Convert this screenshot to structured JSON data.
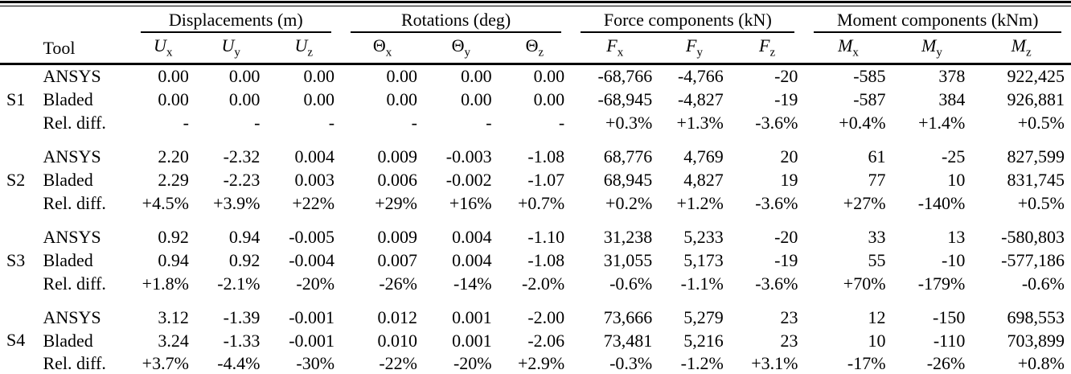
{
  "table": {
    "tool_header": "Tool",
    "groups": [
      {
        "label": "Displacements (m)"
      },
      {
        "label": "Rotations (deg)"
      },
      {
        "label": "Force components (kN)"
      },
      {
        "label": "Moment components (kNm)"
      }
    ],
    "col_headers": [
      {
        "base": "U",
        "sub": "x",
        "italic": true
      },
      {
        "base": "U",
        "sub": "y",
        "italic": true
      },
      {
        "base": "U",
        "sub": "z",
        "italic": true
      },
      {
        "base": "Θ",
        "sub": "x",
        "italic": false
      },
      {
        "base": "Θ",
        "sub": "y",
        "italic": false
      },
      {
        "base": "Θ",
        "sub": "z",
        "italic": false
      },
      {
        "base": "F",
        "sub": "x",
        "italic": true
      },
      {
        "base": "F",
        "sub": "y",
        "italic": true
      },
      {
        "base": "F",
        "sub": "z",
        "italic": true
      },
      {
        "base": "M",
        "sub": "x",
        "italic": true
      },
      {
        "base": "M",
        "sub": "y",
        "italic": true
      },
      {
        "base": "M",
        "sub": "z",
        "italic": true
      }
    ],
    "sections": [
      {
        "label": "S1",
        "rows": [
          {
            "tool": "ANSYS",
            "values": [
              "0.00",
              "0.00",
              "0.00",
              "0.00",
              "0.00",
              "0.00",
              "-68,766",
              "-4,766",
              "-20",
              "-585",
              "378",
              "922,425"
            ]
          },
          {
            "tool": "Bladed",
            "values": [
              "0.00",
              "0.00",
              "0.00",
              "0.00",
              "0.00",
              "0.00",
              "-68,945",
              "-4,827",
              "-19",
              "-587",
              "384",
              "926,881"
            ]
          },
          {
            "tool": "Rel. diff.",
            "values": [
              "-",
              "-",
              "-",
              "-",
              "-",
              "-",
              "+0.3%",
              "+1.3%",
              "-3.6%",
              "+0.4%",
              "+1.4%",
              "+0.5%"
            ]
          }
        ]
      },
      {
        "label": "S2",
        "rows": [
          {
            "tool": "ANSYS",
            "values": [
              "2.20",
              "-2.32",
              "0.004",
              "0.009",
              "-0.003",
              "-1.08",
              "68,776",
              "4,769",
              "20",
              "61",
              "-25",
              "827,599"
            ]
          },
          {
            "tool": "Bladed",
            "values": [
              "2.29",
              "-2.23",
              "0.003",
              "0.006",
              "-0.002",
              "-1.07",
              "68,945",
              "4,827",
              "19",
              "77",
              "10",
              "831,745"
            ]
          },
          {
            "tool": "Rel. diff.",
            "values": [
              "+4.5%",
              "+3.9%",
              "+22%",
              "+29%",
              "+16%",
              "+0.7%",
              "+0.2%",
              "+1.2%",
              "-3.6%",
              "+27%",
              "-140%",
              "+0.5%"
            ]
          }
        ]
      },
      {
        "label": "S3",
        "rows": [
          {
            "tool": "ANSYS",
            "values": [
              "0.92",
              "0.94",
              "-0.005",
              "0.009",
              "0.004",
              "-1.10",
              "31,238",
              "5,233",
              "-20",
              "33",
              "13",
              "-580,803"
            ]
          },
          {
            "tool": "Bladed",
            "values": [
              "0.94",
              "0.92",
              "-0.004",
              "0.007",
              "0.004",
              "-1.08",
              "31,055",
              "5,173",
              "-19",
              "55",
              "-10",
              "-577,186"
            ]
          },
          {
            "tool": "Rel. diff.",
            "values": [
              "+1.8%",
              "-2.1%",
              "-20%",
              "-26%",
              "-14%",
              "-2.0%",
              "-0.6%",
              "-1.1%",
              "-3.6%",
              "+70%",
              "-179%",
              "-0.6%"
            ]
          }
        ]
      },
      {
        "label": "S4",
        "rows": [
          {
            "tool": "ANSYS",
            "values": [
              "3.12",
              "-1.39",
              "-0.001",
              "0.012",
              "0.001",
              "-2.00",
              "73,666",
              "5,279",
              "23",
              "12",
              "-150",
              "698,553"
            ]
          },
          {
            "tool": "Bladed",
            "values": [
              "3.24",
              "-1.33",
              "-0.001",
              "0.010",
              "0.001",
              "-2.06",
              "73,481",
              "5,216",
              "23",
              "10",
              "-110",
              "703,899"
            ]
          },
          {
            "tool": "Rel. diff.",
            "values": [
              "+3.7%",
              "-4.4%",
              "-30%",
              "-22%",
              "-20%",
              "+2.9%",
              "-0.3%",
              "-1.2%",
              "+3.1%",
              "-17%",
              "-26%",
              "+0.8%"
            ]
          }
        ]
      }
    ]
  }
}
